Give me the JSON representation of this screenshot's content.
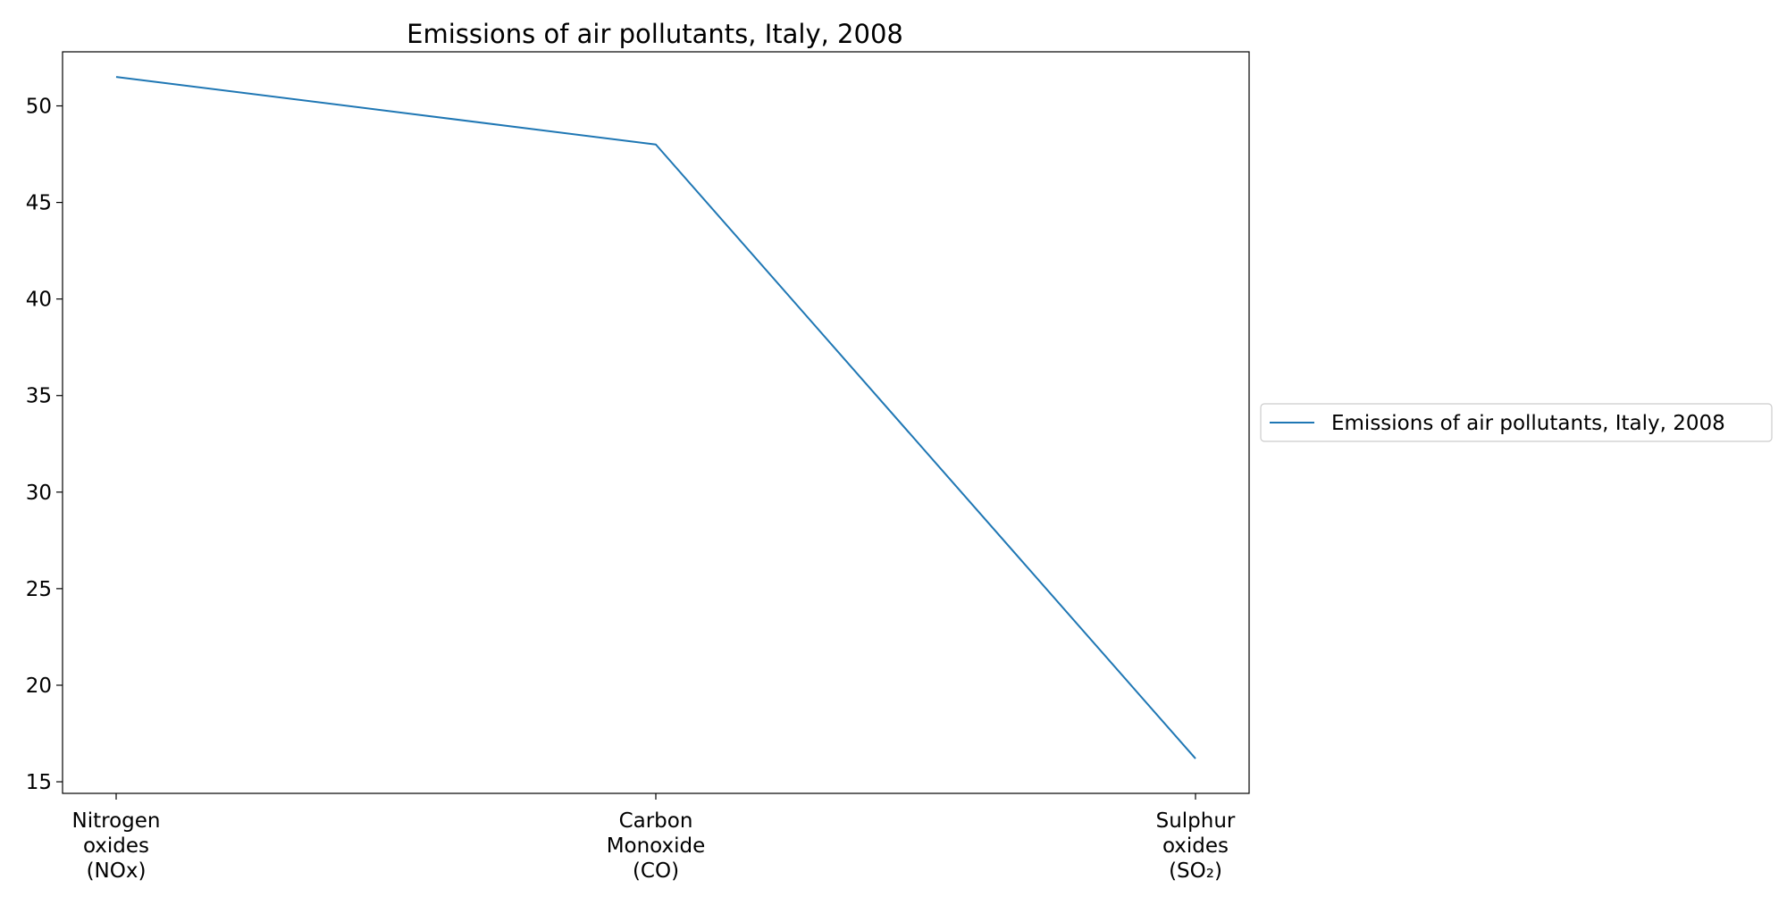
{
  "chart_data": {
    "type": "line",
    "title": "Emissions of air pollutants, Italy, 2008",
    "xlabel": "",
    "ylabel": "",
    "categories": [
      [
        "Nitrogen",
        "oxides",
        "(NOx)"
      ],
      [
        "Carbon",
        "Monoxide",
        "(CO)"
      ],
      [
        "Sulphur",
        "oxides",
        "(SO₂)"
      ]
    ],
    "series": [
      {
        "name": "Emissions of air pollutants, Italy, 2008",
        "values": [
          51.5,
          48.0,
          16.2
        ],
        "color": "#1f77b4"
      }
    ],
    "ylim": [
      14.4,
      52.8
    ],
    "yticks": [
      15,
      20,
      25,
      30,
      35,
      40,
      45,
      50
    ],
    "grid": false,
    "legend_position": "center-right, outside plot area"
  }
}
